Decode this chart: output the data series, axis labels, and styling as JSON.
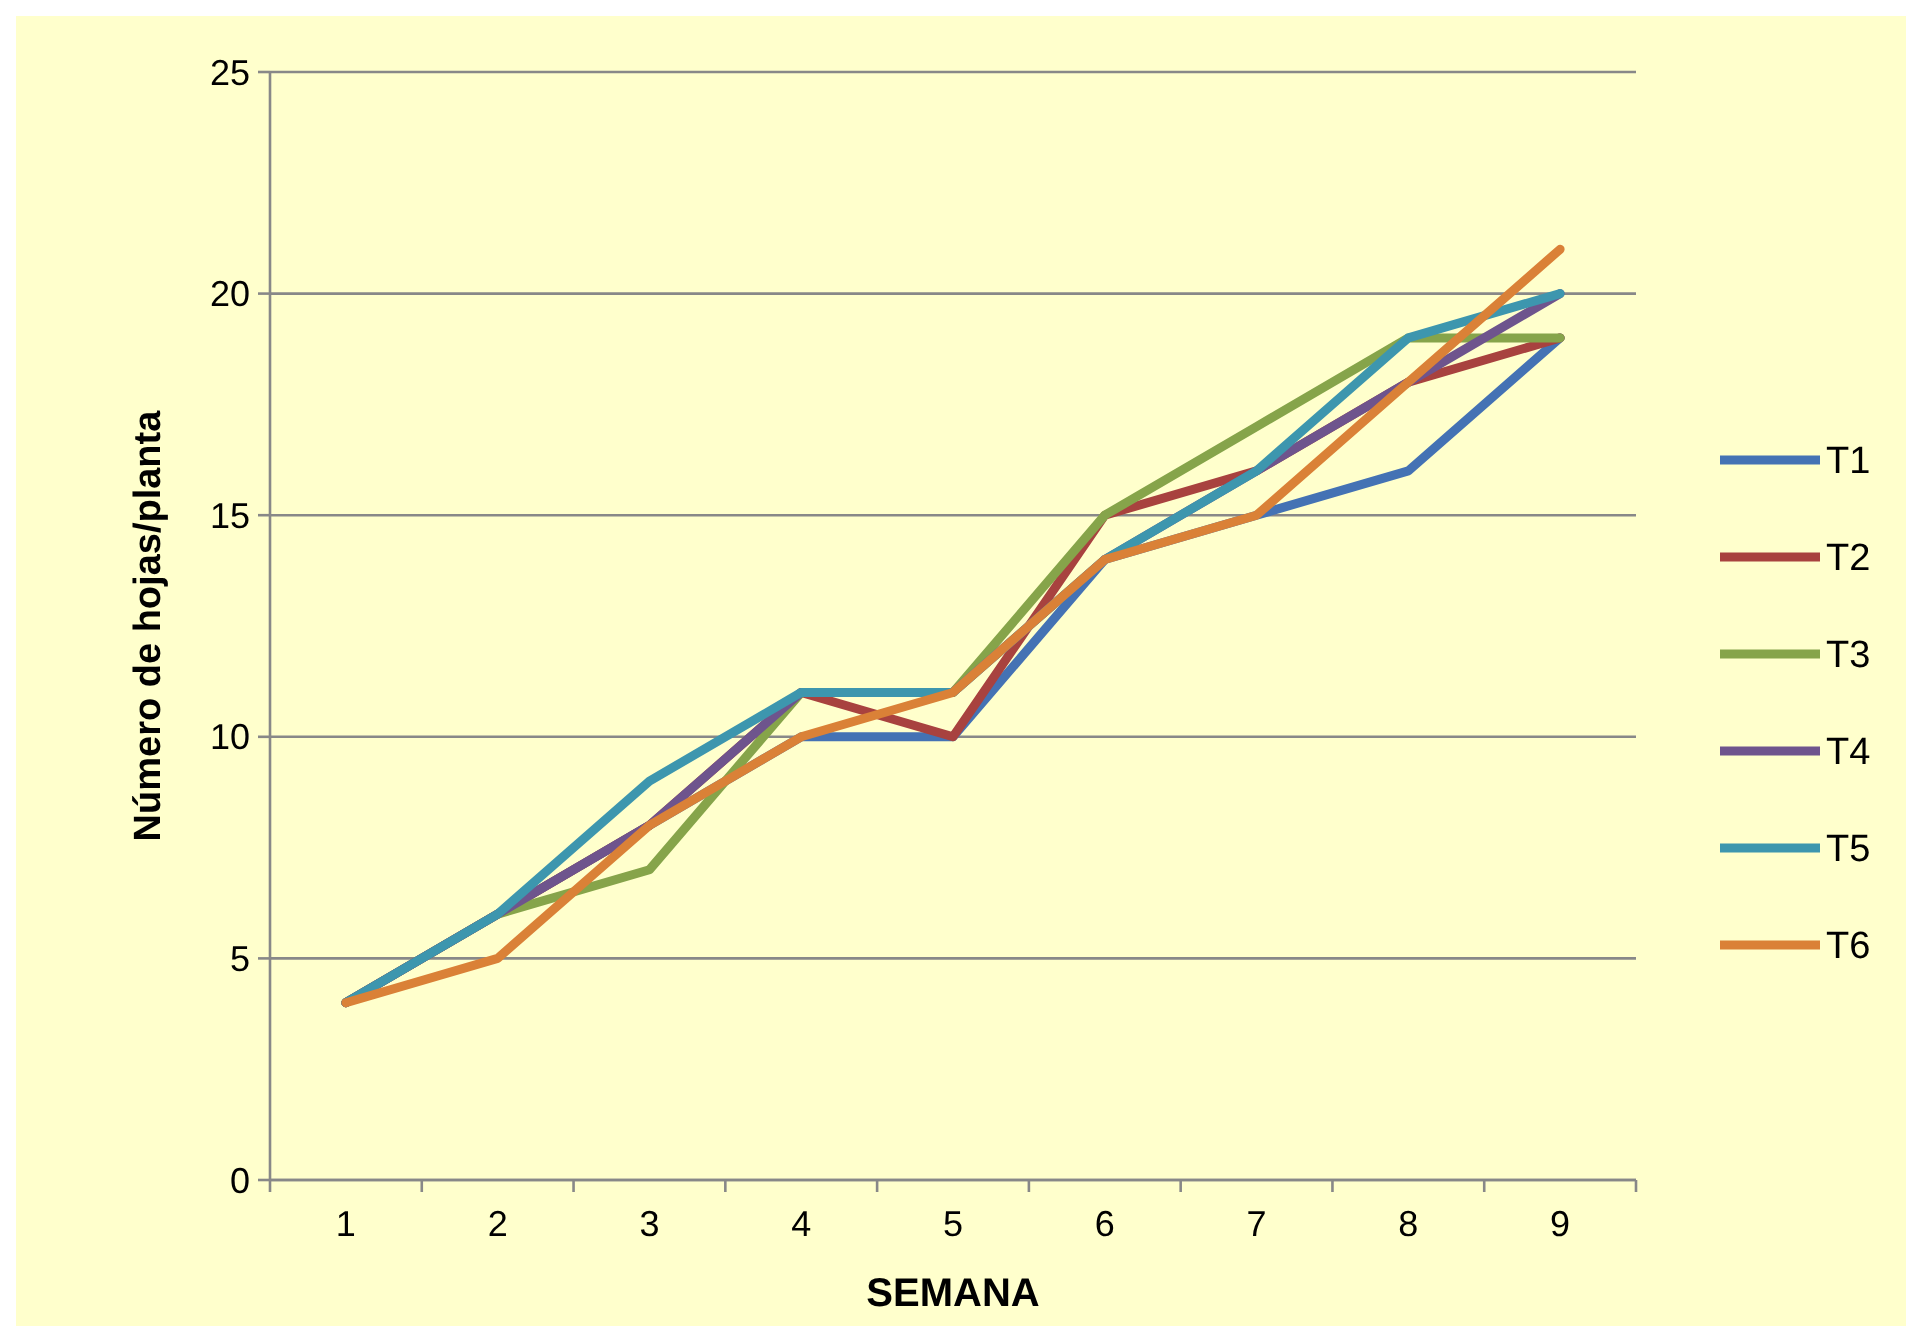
{
  "chart_data": {
    "type": "line",
    "xlabel": "SEMANA",
    "ylabel": "Número de hojas/planta",
    "categories": [
      "1",
      "2",
      "3",
      "4",
      "5",
      "6",
      "7",
      "8",
      "9"
    ],
    "ylim": [
      0,
      25
    ],
    "yticks": [
      0,
      5,
      10,
      15,
      20,
      25
    ],
    "grid": "y",
    "legend": "right",
    "line_style": "solid",
    "series": [
      {
        "name": "T1",
        "color": "#4472b4",
        "values": [
          4,
          6,
          8,
          10,
          10,
          14,
          15,
          16,
          19
        ]
      },
      {
        "name": "T2",
        "color": "#a8423f",
        "values": [
          4,
          6,
          8,
          11,
          10,
          15,
          16,
          18,
          19
        ]
      },
      {
        "name": "T3",
        "color": "#86a44a",
        "values": [
          4,
          6,
          7,
          11,
          11,
          15,
          17,
          19,
          19
        ]
      },
      {
        "name": "T4",
        "color": "#6e548d",
        "values": [
          4,
          6,
          8,
          11,
          11,
          14,
          16,
          18,
          20
        ]
      },
      {
        "name": "T5",
        "color": "#3d96ae",
        "values": [
          4,
          6,
          9,
          11,
          11,
          14,
          16,
          19,
          20
        ]
      },
      {
        "name": "T6",
        "color": "#da8137",
        "values": [
          4,
          5,
          8,
          10,
          11,
          14,
          15,
          18,
          21
        ]
      }
    ]
  }
}
